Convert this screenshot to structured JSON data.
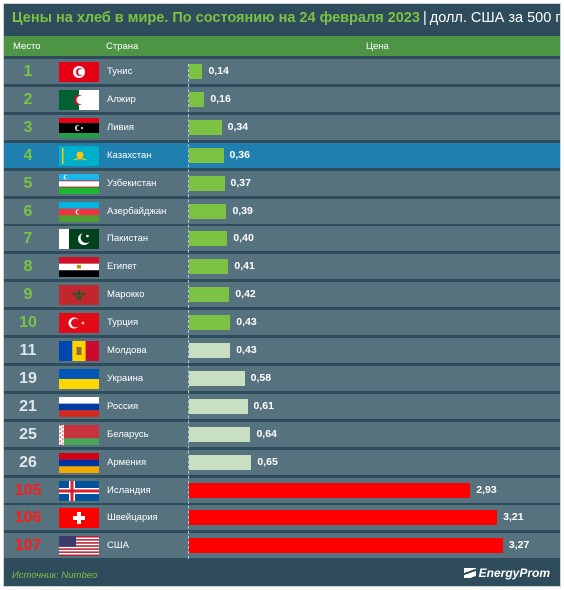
{
  "title": "Цены на хлеб в мире. По состоянию на 24 февраля 2023",
  "title_separator": "|",
  "unit": "долл. США за 500 г",
  "header": {
    "rank": "Место",
    "country": "Страна",
    "price": "Цена"
  },
  "source": "Источник: Numbeo",
  "logo": "EnergyProm",
  "colors": {
    "green": "#7cc243",
    "light_green": "#c8dfc1",
    "red": "#ff0000",
    "highlight": "#1f7fae",
    "background": "#2e4c5b"
  },
  "chart_data": {
    "type": "bar",
    "orientation": "horizontal",
    "title": "Цены на хлеб в мире. По состоянию на 24 февраля 2023",
    "ylabel": "",
    "xlabel": "",
    "unit": "долл. США за 500 г",
    "xlim": [
      0,
      3.5
    ],
    "highlighted": "Казахстан",
    "columns": [
      "Место",
      "Страна",
      "Цена"
    ],
    "rows": [
      {
        "rank": "1",
        "country": "Тунис",
        "value": 0.14,
        "label": "0,14",
        "group": "green",
        "flag": "tunisia-flag"
      },
      {
        "rank": "2",
        "country": "Алжир",
        "value": 0.16,
        "label": "0,16",
        "group": "green",
        "flag": "algeria-flag"
      },
      {
        "rank": "3",
        "country": "Ливия",
        "value": 0.34,
        "label": "0,34",
        "group": "green",
        "flag": "libya-flag"
      },
      {
        "rank": "4",
        "country": "Казахстан",
        "value": 0.36,
        "label": "0,36",
        "group": "green",
        "flag": "kazakhstan-flag"
      },
      {
        "rank": "5",
        "country": "Узбекистан",
        "value": 0.37,
        "label": "0,37",
        "group": "green",
        "flag": "uzbekistan-flag"
      },
      {
        "rank": "6",
        "country": "Азербайджан",
        "value": 0.39,
        "label": "0,39",
        "group": "green",
        "flag": "azerbaijan-flag"
      },
      {
        "rank": "7",
        "country": "Пакистан",
        "value": 0.4,
        "label": "0,40",
        "group": "green",
        "flag": "pakistan-flag"
      },
      {
        "rank": "8",
        "country": "Египет",
        "value": 0.41,
        "label": "0,41",
        "group": "green",
        "flag": "egypt-flag"
      },
      {
        "rank": "9",
        "country": "Марокко",
        "value": 0.42,
        "label": "0,42",
        "group": "green",
        "flag": "morocco-flag"
      },
      {
        "rank": "10",
        "country": "Турция",
        "value": 0.43,
        "label": "0,43",
        "group": "green",
        "flag": "turkey-flag"
      },
      {
        "rank": "11",
        "country": "Молдова",
        "value": 0.43,
        "label": "0,43",
        "group": "light",
        "flag": "moldova-flag"
      },
      {
        "rank": "19",
        "country": "Украина",
        "value": 0.58,
        "label": "0,58",
        "group": "light",
        "flag": "ukraine-flag"
      },
      {
        "rank": "21",
        "country": "Россия",
        "value": 0.61,
        "label": "0,61",
        "group": "light",
        "flag": "russia-flag"
      },
      {
        "rank": "25",
        "country": "Беларусь",
        "value": 0.64,
        "label": "0,64",
        "group": "light",
        "flag": "belarus-flag"
      },
      {
        "rank": "26",
        "country": "Армения",
        "value": 0.65,
        "label": "0,65",
        "group": "light",
        "flag": "armenia-flag"
      },
      {
        "rank": "105",
        "country": "Исландия",
        "value": 2.93,
        "label": "2,93",
        "group": "red",
        "flag": "iceland-flag"
      },
      {
        "rank": "106",
        "country": "Швейцария",
        "value": 3.21,
        "label": "3,21",
        "group": "red",
        "flag": "switzerland-flag"
      },
      {
        "rank": "107",
        "country": "США",
        "value": 3.27,
        "label": "3,27",
        "group": "red",
        "flag": "usa-flag"
      }
    ]
  }
}
